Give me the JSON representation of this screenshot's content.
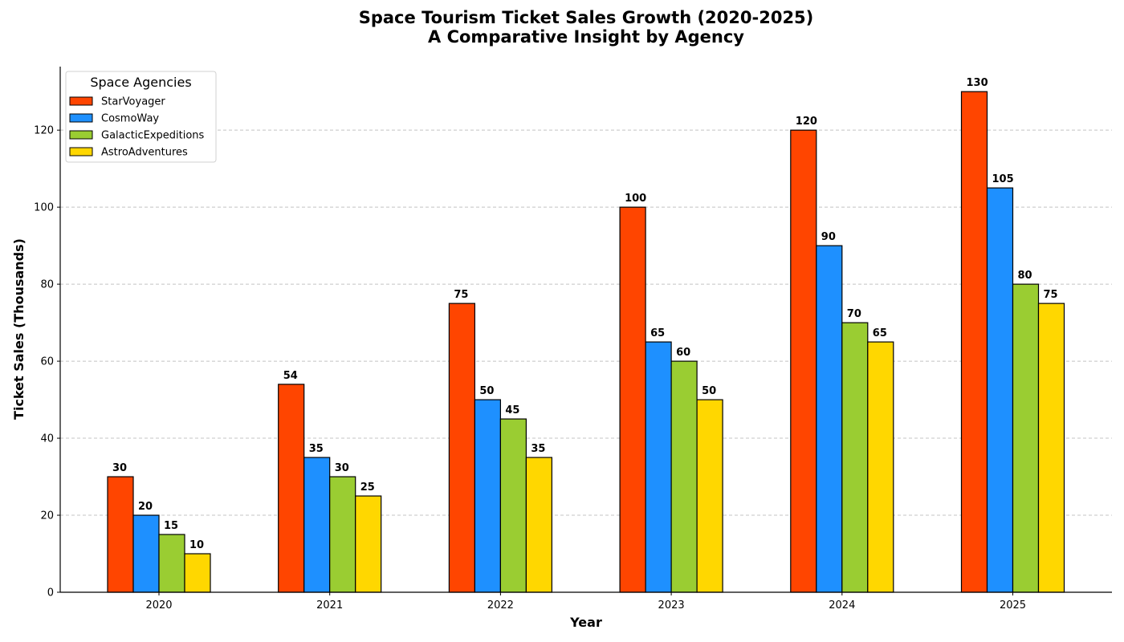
{
  "chart_data": {
    "type": "bar",
    "title": "Space Tourism Ticket Sales Growth (2020-2025)",
    "subtitle": "A Comparative Insight by Agency",
    "xlabel": "Year",
    "ylabel": "Ticket Sales (Thousands)",
    "categories": [
      "2020",
      "2021",
      "2022",
      "2023",
      "2024",
      "2025"
    ],
    "ylim": [
      0,
      136.5
    ],
    "yticks": [
      0,
      20,
      40,
      60,
      80,
      100,
      120
    ],
    "grid": "y, dashed",
    "legend": {
      "title": "Space Agencies",
      "placement": "top-left"
    },
    "series": [
      {
        "name": "StarVoyager",
        "color": "#ff4500",
        "values": [
          30,
          54,
          75,
          100,
          120,
          130
        ]
      },
      {
        "name": "CosmoWay",
        "color": "#1e90ff",
        "values": [
          20,
          35,
          50,
          65,
          90,
          105
        ]
      },
      {
        "name": "GalacticExpeditions",
        "color": "#9acd32",
        "values": [
          15,
          30,
          45,
          60,
          70,
          80
        ]
      },
      {
        "name": "AstroAdventures",
        "color": "#ffd700",
        "values": [
          10,
          25,
          35,
          50,
          65,
          75
        ]
      }
    ]
  }
}
